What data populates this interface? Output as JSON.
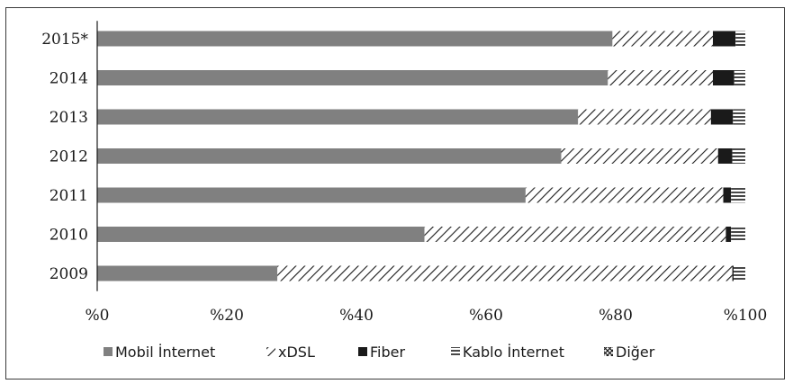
{
  "chart_data": {
    "type": "bar",
    "orientation": "horizontal",
    "stacked": true,
    "percent_stacked": true,
    "categories": [
      "2015*",
      "2014",
      "2013",
      "2012",
      "2011",
      "2010",
      "2009"
    ],
    "series": [
      {
        "name": "Mobil İnternet",
        "values": [
          79.5,
          78.8,
          74.2,
          71.6,
          66.1,
          50.5,
          27.8
        ],
        "pattern": "solid-gray",
        "color": "#808080"
      },
      {
        "name": "xDSL",
        "values": [
          15.5,
          16.2,
          20.5,
          24.2,
          30.5,
          46.5,
          70.2
        ],
        "pattern": "diagonal-hatch",
        "color": "#1a1a1a"
      },
      {
        "name": "Fiber",
        "values": [
          3.5,
          3.3,
          3.4,
          2.2,
          1.2,
          0.8,
          0.2
        ],
        "pattern": "solid-black",
        "color": "#1a1a1a"
      },
      {
        "name": "Kablo İnternet",
        "values": [
          1.5,
          1.7,
          1.9,
          2.0,
          2.2,
          2.2,
          1.8
        ],
        "pattern": "horizontal-lines",
        "color": "#1a1a1a"
      },
      {
        "name": "Diğer",
        "values": [
          0,
          0,
          0,
          0,
          0,
          0,
          0
        ],
        "pattern": "crosshatch",
        "color": "#1a1a1a"
      }
    ],
    "x_ticks": [
      "%0",
      "%20",
      "%40",
      "%60",
      "%80",
      "%100"
    ],
    "xlim": [
      0,
      100
    ],
    "grid": false,
    "legend_position": "bottom"
  }
}
